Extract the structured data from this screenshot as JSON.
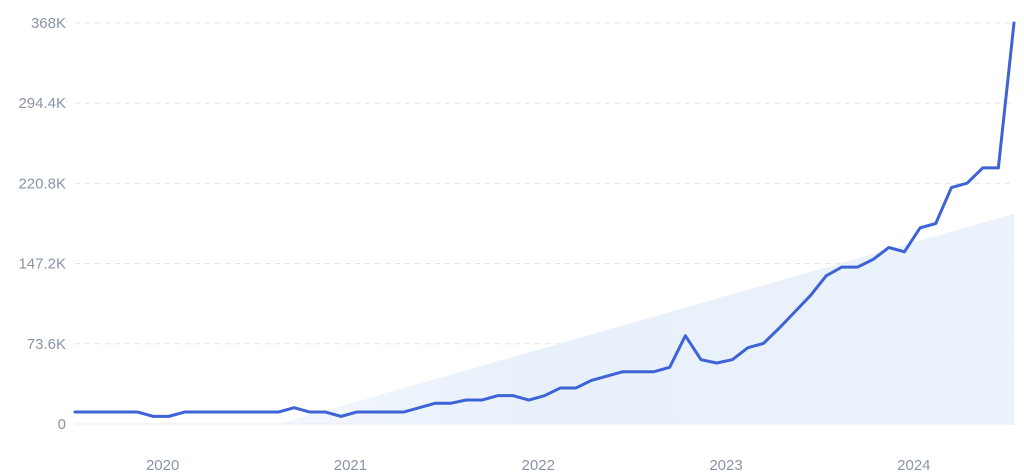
{
  "chart_data": {
    "type": "line",
    "title": "",
    "xlabel": "",
    "ylabel": "",
    "x_tick_labels": [
      "2020",
      "2021",
      "2022",
      "2023",
      "2024"
    ],
    "y_tick_labels": [
      "0",
      "73.6K",
      "147.2K",
      "220.8K",
      "294.4K",
      "368K"
    ],
    "y_ticks": [
      0,
      73600,
      147200,
      220800,
      294400,
      368000
    ],
    "ylim": [
      0,
      368000
    ],
    "xlim": [
      "2019-08",
      "2024-08"
    ],
    "grid": true,
    "legend": "none",
    "series": [
      {
        "color": "#3d63d6",
        "x": [
          "2019-08",
          "2019-09",
          "2019-10",
          "2019-11",
          "2019-12",
          "2020-01",
          "2020-02",
          "2020-03",
          "2020-04",
          "2020-05",
          "2020-06",
          "2020-07",
          "2020-08",
          "2020-09",
          "2020-10",
          "2020-11",
          "2020-12",
          "2021-01",
          "2021-02",
          "2021-03",
          "2021-04",
          "2021-05",
          "2021-06",
          "2021-07",
          "2021-08",
          "2021-09",
          "2021-10",
          "2021-11",
          "2021-12",
          "2022-01",
          "2022-02",
          "2022-03",
          "2022-04",
          "2022-05",
          "2022-06",
          "2022-07",
          "2022-08",
          "2022-09",
          "2022-10",
          "2022-11",
          "2022-12",
          "2023-01",
          "2023-02",
          "2023-03",
          "2023-04",
          "2023-05",
          "2023-06",
          "2023-07",
          "2023-08",
          "2023-09",
          "2023-10",
          "2023-11",
          "2023-12",
          "2024-01",
          "2024-02",
          "2024-03",
          "2024-04",
          "2024-05",
          "2024-06",
          "2024-07",
          "2024-08"
        ],
        "values": [
          11000,
          11000,
          11000,
          11000,
          11000,
          7000,
          7000,
          11000,
          11000,
          11000,
          11000,
          11000,
          11000,
          11000,
          15000,
          11000,
          11000,
          7000,
          11000,
          11000,
          11000,
          11000,
          15000,
          19000,
          19000,
          22000,
          22000,
          26000,
          26000,
          22000,
          26000,
          33000,
          33000,
          40000,
          44000,
          48000,
          48000,
          48000,
          52000,
          81000,
          59000,
          56000,
          59000,
          70000,
          74000,
          88000,
          103000,
          118000,
          136000,
          144000,
          144000,
          151000,
          162000,
          158000,
          180000,
          184000,
          217000,
          221000,
          235000,
          235000,
          368000
        ]
      }
    ],
    "trend_band": {
      "color": "#e8f0fb",
      "x": [
        "2020-09",
        "2024-08"
      ],
      "values": [
        0,
        193000
      ]
    }
  }
}
